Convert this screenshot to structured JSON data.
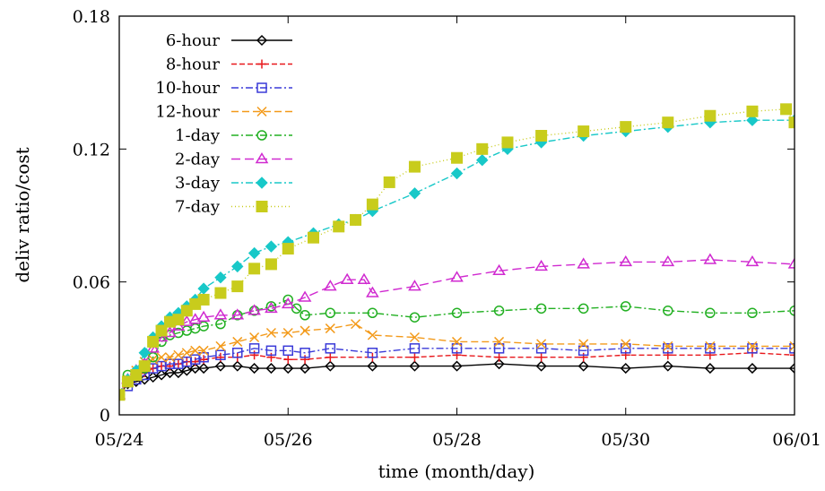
{
  "chart_data": {
    "type": "line",
    "title": "",
    "xlabel": "time (month/day)",
    "ylabel": "deliv ratio/cost",
    "xlim": [
      0,
      8
    ],
    "ylim": [
      0,
      0.18
    ],
    "xticks": [
      0,
      2,
      4,
      6,
      8
    ],
    "xtick_labels": [
      "05/24",
      "05/26",
      "05/28",
      "05/30",
      "06/01"
    ],
    "yticks": [
      0,
      0.06,
      0.12,
      0.18
    ],
    "ytick_labels": [
      "0",
      "0.06",
      "0.12",
      "0.18"
    ],
    "legend_position": "top-left",
    "grid": false,
    "x_unit": "days since 05/24",
    "series": [
      {
        "name": "6-hour",
        "color": "#000000",
        "marker": "diamond-open",
        "dash": "",
        "x": [
          0,
          0.1,
          0.2,
          0.3,
          0.4,
          0.5,
          0.6,
          0.7,
          0.8,
          0.9,
          1.0,
          1.2,
          1.4,
          1.6,
          1.8,
          2.0,
          2.2,
          2.5,
          3.0,
          3.5,
          4.0,
          4.5,
          5.0,
          5.5,
          6.0,
          6.5,
          7.0,
          7.5,
          8.0
        ],
        "y": [
          0.009,
          0.014,
          0.015,
          0.016,
          0.017,
          0.018,
          0.019,
          0.019,
          0.02,
          0.021,
          0.021,
          0.022,
          0.022,
          0.021,
          0.021,
          0.021,
          0.021,
          0.022,
          0.022,
          0.022,
          0.022,
          0.023,
          0.022,
          0.022,
          0.021,
          0.022,
          0.021,
          0.021,
          0.021
        ]
      },
      {
        "name": "8-hour",
        "color": "#e8181c",
        "marker": "plus",
        "dash": "6,3",
        "x": [
          0,
          0.1,
          0.2,
          0.3,
          0.4,
          0.5,
          0.6,
          0.7,
          0.8,
          0.9,
          1.0,
          1.2,
          1.4,
          1.6,
          1.8,
          2.0,
          2.2,
          2.5,
          3.0,
          3.5,
          4.0,
          4.5,
          5.0,
          5.5,
          6.0,
          6.5,
          7.0,
          7.5,
          8.0
        ],
        "y": [
          0.009,
          0.015,
          0.018,
          0.019,
          0.021,
          0.022,
          0.022,
          0.023,
          0.024,
          0.024,
          0.025,
          0.026,
          0.026,
          0.027,
          0.026,
          0.025,
          0.025,
          0.026,
          0.026,
          0.026,
          0.027,
          0.026,
          0.026,
          0.026,
          0.027,
          0.027,
          0.027,
          0.028,
          0.027
        ]
      },
      {
        "name": "10-hour",
        "color": "#3a3ad8",
        "marker": "square-open",
        "dash": "8,3,2,3",
        "x": [
          0,
          0.1,
          0.2,
          0.3,
          0.4,
          0.5,
          0.6,
          0.7,
          0.8,
          0.9,
          1.0,
          1.2,
          1.4,
          1.6,
          1.8,
          2.0,
          2.2,
          2.5,
          3.0,
          3.5,
          4.0,
          4.5,
          5.0,
          5.5,
          6.0,
          6.5,
          7.0,
          7.5,
          8.0
        ],
        "y": [
          0.009,
          0.013,
          0.016,
          0.018,
          0.021,
          0.022,
          0.023,
          0.023,
          0.024,
          0.025,
          0.026,
          0.027,
          0.028,
          0.03,
          0.029,
          0.029,
          0.028,
          0.03,
          0.028,
          0.03,
          0.03,
          0.03,
          0.03,
          0.029,
          0.03,
          0.03,
          0.03,
          0.03,
          0.03
        ]
      },
      {
        "name": "12-hour",
        "color": "#f39a1a",
        "marker": "cross",
        "dash": "8,4",
        "x": [
          0,
          0.1,
          0.2,
          0.3,
          0.4,
          0.5,
          0.6,
          0.7,
          0.8,
          0.9,
          1.0,
          1.2,
          1.4,
          1.6,
          1.8,
          2.0,
          2.2,
          2.5,
          2.8,
          3.0,
          3.5,
          4.0,
          4.5,
          5.0,
          5.5,
          6.0,
          6.5,
          7.0,
          7.5,
          8.0
        ],
        "y": [
          0.009,
          0.016,
          0.02,
          0.024,
          0.025,
          0.026,
          0.026,
          0.027,
          0.028,
          0.029,
          0.029,
          0.031,
          0.033,
          0.035,
          0.037,
          0.037,
          0.038,
          0.039,
          0.041,
          0.036,
          0.035,
          0.033,
          0.033,
          0.032,
          0.032,
          0.032,
          0.031,
          0.031,
          0.031,
          0.031
        ]
      },
      {
        "name": "1-day",
        "color": "#22b022",
        "marker": "circle-open",
        "dash": "8,3,2,3",
        "x": [
          0,
          0.1,
          0.2,
          0.3,
          0.4,
          0.5,
          0.6,
          0.7,
          0.8,
          0.9,
          1.0,
          1.2,
          1.4,
          1.6,
          1.8,
          2.0,
          2.1,
          2.2,
          2.5,
          3.0,
          3.5,
          4.0,
          4.5,
          5.0,
          5.5,
          6.0,
          6.5,
          7.0,
          7.5,
          8.0
        ],
        "y": [
          0.009,
          0.018,
          0.019,
          0.021,
          0.026,
          0.033,
          0.036,
          0.037,
          0.038,
          0.039,
          0.04,
          0.041,
          0.045,
          0.047,
          0.049,
          0.052,
          0.048,
          0.045,
          0.046,
          0.046,
          0.044,
          0.046,
          0.047,
          0.048,
          0.048,
          0.049,
          0.047,
          0.046,
          0.046,
          0.047
        ]
      },
      {
        "name": "2-day",
        "color": "#d02ad0",
        "marker": "triangle-open",
        "dash": "10,5",
        "x": [
          0,
          0.1,
          0.2,
          0.3,
          0.4,
          0.5,
          0.6,
          0.7,
          0.8,
          0.9,
          1.0,
          1.2,
          1.4,
          1.6,
          1.8,
          2.0,
          2.2,
          2.5,
          2.7,
          2.9,
          3.0,
          3.5,
          4.0,
          4.5,
          5.0,
          5.5,
          6.0,
          6.5,
          7.0,
          7.5,
          8.0
        ],
        "y": [
          0.009,
          0.016,
          0.02,
          0.023,
          0.03,
          0.035,
          0.037,
          0.04,
          0.042,
          0.043,
          0.044,
          0.045,
          0.045,
          0.047,
          0.048,
          0.05,
          0.053,
          0.058,
          0.061,
          0.061,
          0.055,
          0.058,
          0.062,
          0.065,
          0.067,
          0.068,
          0.069,
          0.069,
          0.07,
          0.069,
          0.068
        ]
      },
      {
        "name": "3-day",
        "color": "#18c8c8",
        "marker": "diamond-filled",
        "dash": "8,3,2,3",
        "x": [
          0,
          0.1,
          0.2,
          0.3,
          0.4,
          0.5,
          0.6,
          0.7,
          0.8,
          0.9,
          1.0,
          1.2,
          1.4,
          1.6,
          1.8,
          2.0,
          2.3,
          2.6,
          2.8,
          3.0,
          3.5,
          4.0,
          4.3,
          4.6,
          5.0,
          5.5,
          6.0,
          6.5,
          7.0,
          7.5,
          8.0
        ],
        "y": [
          0.009,
          0.016,
          0.02,
          0.028,
          0.035,
          0.04,
          0.044,
          0.046,
          0.049,
          0.052,
          0.057,
          0.062,
          0.067,
          0.073,
          0.076,
          0.078,
          0.082,
          0.086,
          0.088,
          0.092,
          0.1,
          0.109,
          0.115,
          0.12,
          0.123,
          0.126,
          0.128,
          0.13,
          0.132,
          0.133,
          0.133
        ]
      },
      {
        "name": "7-day",
        "color": "#c8cc1c",
        "marker": "square-filled",
        "dash": "1,3",
        "x": [
          0,
          0.1,
          0.2,
          0.3,
          0.4,
          0.5,
          0.6,
          0.7,
          0.8,
          0.9,
          1.0,
          1.2,
          1.4,
          1.6,
          1.8,
          2.0,
          2.3,
          2.6,
          2.8,
          3.0,
          3.2,
          3.5,
          4.0,
          4.3,
          4.6,
          5.0,
          5.5,
          6.0,
          6.5,
          7.0,
          7.5,
          7.9,
          8.0
        ],
        "y": [
          0.009,
          0.015,
          0.018,
          0.022,
          0.033,
          0.038,
          0.042,
          0.043,
          0.047,
          0.05,
          0.052,
          0.055,
          0.058,
          0.066,
          0.068,
          0.075,
          0.08,
          0.085,
          0.088,
          0.095,
          0.105,
          0.112,
          0.116,
          0.12,
          0.123,
          0.126,
          0.128,
          0.13,
          0.132,
          0.135,
          0.137,
          0.138,
          0.132
        ]
      }
    ]
  }
}
